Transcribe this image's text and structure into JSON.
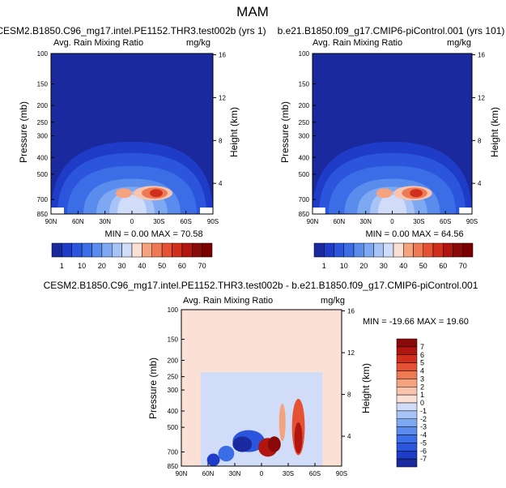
{
  "page": {
    "title": "MAM"
  },
  "colors": {
    "blues": [
      "#1a2a9e",
      "#1f3cc8",
      "#2a55dc",
      "#3b6ee6",
      "#5a8cee",
      "#7ea8f2",
      "#a8c4f6",
      "#d0dcf8"
    ],
    "reds": [
      "#fbe0d6",
      "#f9c3ad",
      "#f5a27f",
      "#ee7a55",
      "#e45233",
      "#d02f1c",
      "#b0150f",
      "#8a0a0a"
    ]
  },
  "chart_data": [
    {
      "type": "heatmap",
      "title": "CESM2.B1850.C96_mg17.intel.PE1152.THR3.test002b (yrs 1)",
      "left_label": "Avg. Rain Mixing Ratio",
      "right_label": "mg/kg",
      "ylabel": "Pressure (mb)",
      "ylabel_right": "Height (km)",
      "x_ticks": [
        "90N",
        "60N",
        "30N",
        "0",
        "30S",
        "60S",
        "90S"
      ],
      "y_ticks": [
        "100",
        "150",
        "200",
        "250",
        "300",
        "400",
        "500",
        "700",
        "850"
      ],
      "y_ticks_right": [
        "16",
        "12",
        "8",
        "4"
      ],
      "stats": {
        "min_label": "MIN =",
        "min": "0.00",
        "max_label": "MAX =",
        "max": "70.58"
      },
      "colorbar_labels": [
        "1",
        "10",
        "20",
        "30",
        "40",
        "50",
        "60",
        "70"
      ]
    },
    {
      "type": "heatmap",
      "title": "b.e21.B1850.f09_g17.CMIP6-piControl.001 (yrs 101)",
      "left_label": "Avg. Rain Mixing Ratio",
      "right_label": "mg/kg",
      "ylabel": "Pressure (mb)",
      "ylabel_right": "Height (km)",
      "x_ticks": [
        "90N",
        "60N",
        "30N",
        "0",
        "30S",
        "60S",
        "90S"
      ],
      "y_ticks": [
        "100",
        "150",
        "200",
        "250",
        "300",
        "400",
        "500",
        "700",
        "850"
      ],
      "y_ticks_right": [
        "16",
        "12",
        "8",
        "4"
      ],
      "stats": {
        "min_label": "MIN =",
        "min": "0.00",
        "max_label": "MAX =",
        "max": "64.56"
      },
      "colorbar_labels": [
        "1",
        "10",
        "20",
        "30",
        "40",
        "50",
        "60",
        "70"
      ]
    },
    {
      "type": "heatmap",
      "title": "CESM2.B1850.C96_mg17.intel.PE1152.THR3.test002b - b.e21.B1850.f09_g17.CMIP6-piControl.001",
      "left_label": "Avg. Rain Mixing Ratio",
      "right_label": "mg/kg",
      "ylabel": "Pressure (mb)",
      "ylabel_right": "Height (km)",
      "x_ticks": [
        "90N",
        "60N",
        "30N",
        "0",
        "30S",
        "60S",
        "90S"
      ],
      "y_ticks": [
        "100",
        "150",
        "200",
        "250",
        "300",
        "400",
        "500",
        "700",
        "850"
      ],
      "y_ticks_right": [
        "16",
        "12",
        "8",
        "4"
      ],
      "stats": {
        "min_label": "MIN =",
        "min": "-19.66",
        "max_label": "MAX =",
        "max": "19.60"
      },
      "colorbar_labels": [
        "7",
        "6",
        "5",
        "4",
        "3",
        "2",
        "1",
        "0",
        "-1",
        "-2",
        "-3",
        "-4",
        "-5",
        "-6",
        "-7"
      ]
    }
  ]
}
